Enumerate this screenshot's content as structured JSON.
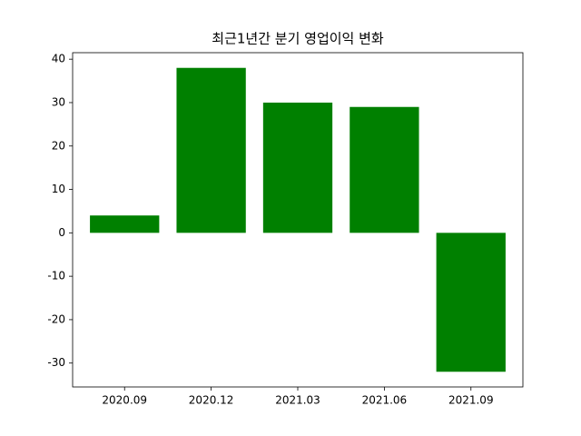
{
  "chart_data": {
    "type": "bar",
    "title": "최근1년간 분기 영업이익 변화",
    "categories": [
      "2020.09",
      "2020.12",
      "2021.03",
      "2021.06",
      "2021.09"
    ],
    "values": [
      4,
      38,
      30,
      29,
      -32
    ],
    "color": "#008000",
    "ylim": [
      -35.5,
      41.5
    ],
    "yticks": [
      -30,
      -20,
      -10,
      0,
      10,
      20,
      30,
      40
    ],
    "grid": false
  }
}
